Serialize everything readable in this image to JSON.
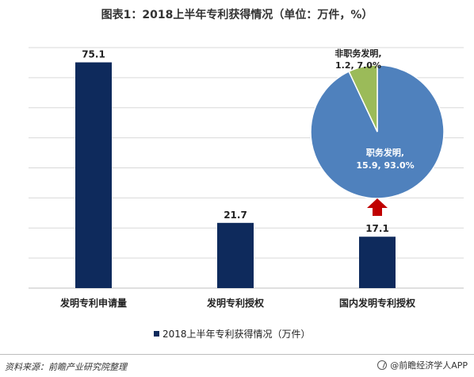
{
  "title": "图表1：2018上半年专利获得情况（单位：万件，%）",
  "source": "资料来源：前瞻产业研究院整理",
  "brand": "@前瞻经济学人APP",
  "colors": {
    "bar": "#0e2a5c",
    "pie_main": "#4f81bd",
    "pie_minor": "#9bbb59",
    "arrow": "#c00000",
    "grid": "#d9d9d9",
    "axis": "#bfbfbf"
  },
  "chart_data": [
    {
      "type": "bar",
      "categories": [
        "发明专利申请量",
        "发明专利授权",
        "国内发明专利授权"
      ],
      "series": [
        {
          "name": "2018上半年专利获得情况（万件）",
          "values": [
            75.1,
            21.7,
            17.1
          ]
        }
      ],
      "value_labels": [
        "75.1",
        "21.7",
        "17.1"
      ],
      "ylim": [
        0,
        80
      ],
      "grid": true,
      "legend": "bottom"
    },
    {
      "type": "pie",
      "labels": [
        "职务发明",
        "非职务发明"
      ],
      "values": [
        15.9,
        1.2
      ],
      "percent": [
        93.0,
        7.0
      ],
      "slice_labels": [
        "职务发明,",
        "非职务发明,"
      ],
      "slice_values": [
        "15.9, 93.0%",
        "1.2, 7.0%"
      ]
    }
  ]
}
